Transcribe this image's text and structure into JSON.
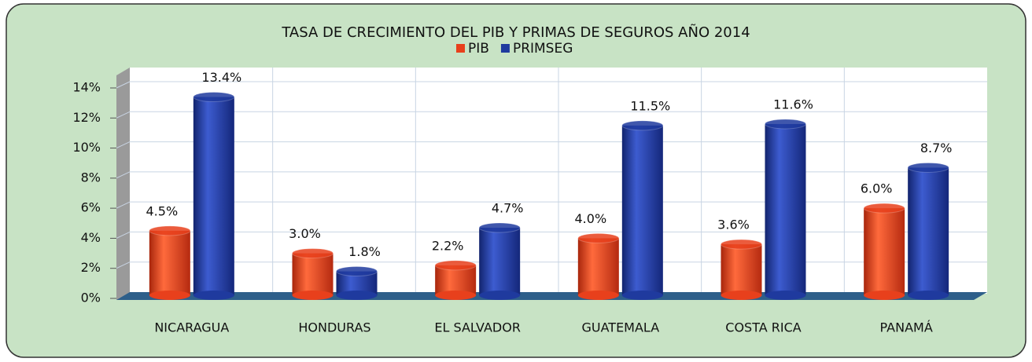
{
  "chart_data": {
    "type": "bar",
    "title": "TASA DE CRECIMIENTO DEL PIB Y PRIMAS DE SEGUROS AÑO 2014",
    "categories": [
      "NICARAGUA",
      "HONDURAS",
      "EL SALVADOR",
      "GUATEMALA",
      "COSTA RICA",
      "PANAMÁ"
    ],
    "series": [
      {
        "name": "PIB",
        "color": "#e8401c",
        "values": [
          4.5,
          3.0,
          2.2,
          4.0,
          3.6,
          6.0
        ],
        "value_labels": [
          "4.5%",
          "3.0%",
          "2.2%",
          "4.0%",
          "3.6%",
          "6.0%"
        ]
      },
      {
        "name": "PRIMSEG",
        "color": "#1f3a9e",
        "values": [
          13.4,
          1.8,
          4.7,
          11.5,
          11.6,
          8.7
        ],
        "value_labels": [
          "13.4%",
          "1.8%",
          "4.7%",
          "11.5%",
          "11.6%",
          "8.7%"
        ]
      }
    ],
    "ylim": [
      0,
      14
    ],
    "yticks": [
      {
        "value": 0,
        "label": "0%"
      },
      {
        "value": 2,
        "label": "2%"
      },
      {
        "value": 4,
        "label": "4%"
      },
      {
        "value": 6,
        "label": "6%"
      },
      {
        "value": 8,
        "label": "8%"
      },
      {
        "value": 10,
        "label": "10%"
      },
      {
        "value": 12,
        "label": "12%"
      },
      {
        "value": 14,
        "label": "14%"
      }
    ],
    "grid": true,
    "legend": "top"
  }
}
